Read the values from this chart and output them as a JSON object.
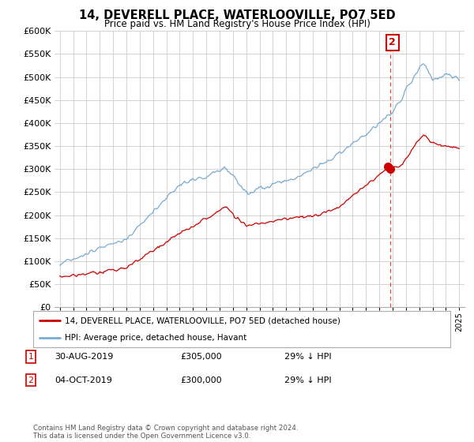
{
  "title": "14, DEVERELL PLACE, WATERLOOVILLE, PO7 5ED",
  "subtitle": "Price paid vs. HM Land Registry's House Price Index (HPI)",
  "legend_label_red": "14, DEVERELL PLACE, WATERLOOVILLE, PO7 5ED (detached house)",
  "legend_label_blue": "HPI: Average price, detached house, Havant",
  "transaction1_date": "30-AUG-2019",
  "transaction1_price": "£305,000",
  "transaction1_hpi": "29% ↓ HPI",
  "transaction2_date": "04-OCT-2019",
  "transaction2_price": "£300,000",
  "transaction2_hpi": "29% ↓ HPI",
  "footer": "Contains HM Land Registry data © Crown copyright and database right 2024.\nThis data is licensed under the Open Government Licence v3.0.",
  "red_color": "#cc0000",
  "blue_color": "#7aaacf",
  "annotation_box_color": "#cc0000",
  "background_color": "#ffffff",
  "grid_color": "#cccccc",
  "ylim_min": 0,
  "ylim_max": 600000,
  "xlabel_start_year": 1995,
  "xlabel_end_year": 2025
}
